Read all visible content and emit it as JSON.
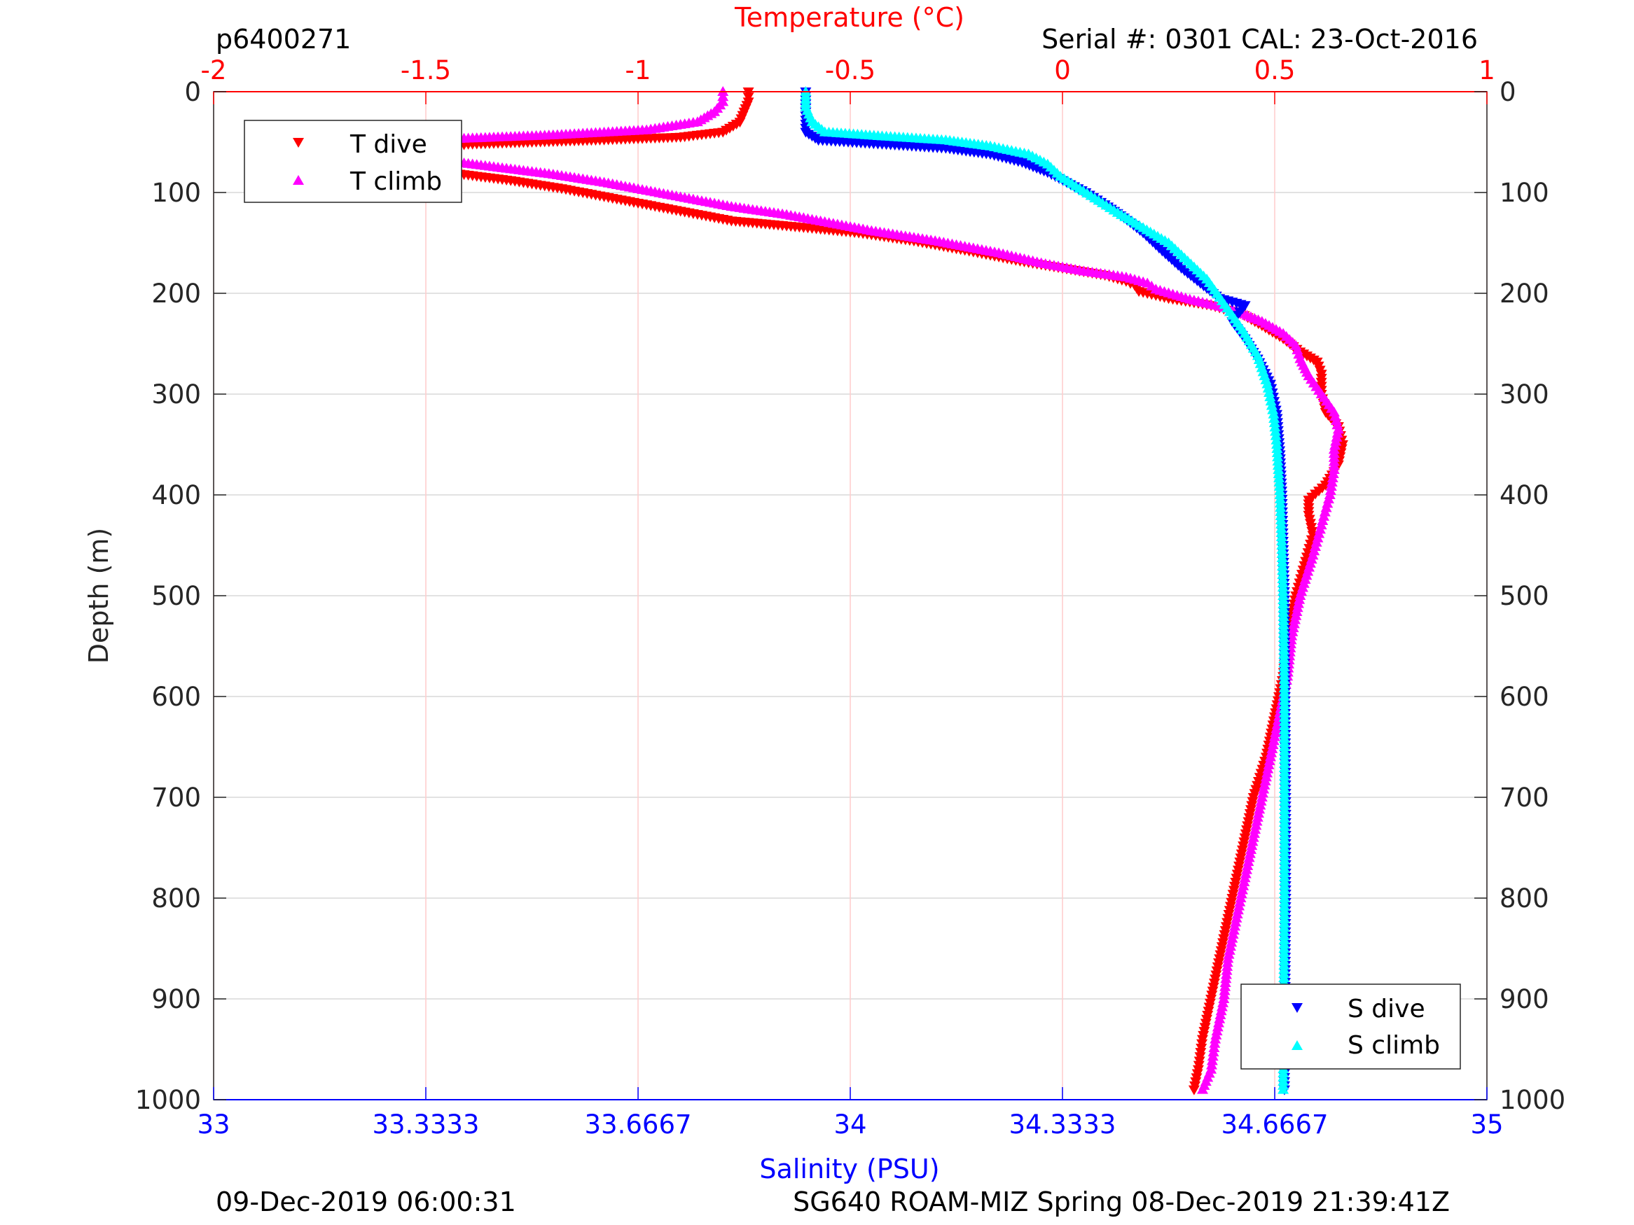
{
  "header": {
    "dive_id": "p6400271",
    "serial": "Serial #: 0301  CAL: 23-Oct-2016"
  },
  "footer": {
    "left": "09-Dec-2019 06:00:31",
    "right": "SG640 ROAM-MIZ Spring 08-Dec-2019 21:39:41Z"
  },
  "colors": {
    "temperature_axis": "#ff0000",
    "salinity_axis": "#0000ff",
    "t_dive": "#ff0000",
    "t_climb": "#ff00ff",
    "s_dive": "#0000ff",
    "s_climb": "#00ffff"
  },
  "chart_data": {
    "type": "scatter",
    "grid": true,
    "y_axis": {
      "label": "Depth (m)",
      "range": [
        0,
        1000
      ],
      "reversed": true,
      "ticks": [
        "0",
        "100",
        "200",
        "300",
        "400",
        "500",
        "600",
        "700",
        "800",
        "900",
        "1000"
      ]
    },
    "x_top_axis": {
      "label": "Temperature (°C)",
      "range": [
        -2,
        1
      ],
      "ticks": [
        -2,
        -1.5,
        -1,
        -0.5,
        0,
        0.5,
        1
      ],
      "tick_labels": [
        "-2",
        "-1.5",
        "-1",
        "-0.5",
        "0",
        "0.5",
        "1"
      ]
    },
    "x_bottom_axis": {
      "label": "Salinity (PSU)",
      "range": [
        33,
        35
      ],
      "ticks": [
        33,
        33.3333,
        33.6667,
        34,
        34.3333,
        34.6667,
        35
      ],
      "tick_labels": [
        "33",
        "33.3333",
        "33.6667",
        "34",
        "34.3333",
        "34.6667",
        "35"
      ]
    },
    "legend_temperature": {
      "placement": "top-left",
      "entries": [
        {
          "series": "T dive",
          "marker": "triangle-down"
        },
        {
          "series": "T climb",
          "marker": "triangle-up"
        }
      ]
    },
    "legend_salinity": {
      "placement": "bottom-right",
      "entries": [
        {
          "series": "S dive",
          "marker": "triangle-down"
        },
        {
          "series": "S climb",
          "marker": "triangle-up"
        }
      ]
    },
    "series": [
      {
        "name": "T dive",
        "axis": "temperature",
        "marker": "triangle-down",
        "points": [
          [
            -0.74,
            0
          ],
          [
            -0.74,
            10
          ],
          [
            -0.75,
            20
          ],
          [
            -0.76,
            30
          ],
          [
            -0.8,
            40
          ],
          [
            -0.9,
            45
          ],
          [
            -1.1,
            48
          ],
          [
            -1.4,
            52
          ],
          [
            -1.52,
            58
          ],
          [
            -1.57,
            65
          ],
          [
            -1.52,
            72
          ],
          [
            -1.45,
            80
          ],
          [
            -1.3,
            88
          ],
          [
            -1.18,
            96
          ],
          [
            -1.08,
            104
          ],
          [
            -0.98,
            112
          ],
          [
            -0.88,
            120
          ],
          [
            -0.78,
            128
          ],
          [
            -0.6,
            135
          ],
          [
            -0.48,
            140
          ],
          [
            -0.35,
            148
          ],
          [
            -0.22,
            158
          ],
          [
            -0.1,
            168
          ],
          [
            0.0,
            175
          ],
          [
            0.1,
            182
          ],
          [
            0.15,
            188
          ],
          [
            0.17,
            192
          ],
          [
            0.18,
            198
          ],
          [
            0.25,
            205
          ],
          [
            0.35,
            212
          ],
          [
            0.42,
            220
          ],
          [
            0.47,
            232
          ],
          [
            0.52,
            245
          ],
          [
            0.56,
            258
          ],
          [
            0.6,
            268
          ],
          [
            0.61,
            280
          ],
          [
            0.61,
            300
          ],
          [
            0.62,
            318
          ],
          [
            0.65,
            332
          ],
          [
            0.66,
            350
          ],
          [
            0.65,
            370
          ],
          [
            0.62,
            390
          ],
          [
            0.58,
            405
          ],
          [
            0.58,
            420
          ],
          [
            0.59,
            440
          ],
          [
            0.57,
            470
          ],
          [
            0.55,
            500
          ],
          [
            0.53,
            540
          ],
          [
            0.52,
            580
          ],
          [
            0.5,
            620
          ],
          [
            0.48,
            660
          ],
          [
            0.45,
            700
          ],
          [
            0.43,
            740
          ],
          [
            0.41,
            780
          ],
          [
            0.39,
            820
          ],
          [
            0.37,
            860
          ],
          [
            0.35,
            900
          ],
          [
            0.33,
            940
          ],
          [
            0.32,
            970
          ],
          [
            0.31,
            990
          ]
        ]
      },
      {
        "name": "T climb",
        "axis": "temperature",
        "marker": "triangle-up",
        "points": [
          [
            -0.8,
            0
          ],
          [
            -0.8,
            10
          ],
          [
            -0.82,
            20
          ],
          [
            -0.86,
            30
          ],
          [
            -0.98,
            38
          ],
          [
            -1.2,
            43
          ],
          [
            -1.45,
            47
          ],
          [
            -1.65,
            52
          ],
          [
            -1.63,
            58
          ],
          [
            -1.5,
            66
          ],
          [
            -1.35,
            74
          ],
          [
            -1.2,
            82
          ],
          [
            -1.08,
            90
          ],
          [
            -0.98,
            98
          ],
          [
            -0.88,
            106
          ],
          [
            -0.78,
            114
          ],
          [
            -0.65,
            122
          ],
          [
            -0.55,
            130
          ],
          [
            -0.45,
            138
          ],
          [
            -0.3,
            148
          ],
          [
            -0.15,
            160
          ],
          [
            -0.05,
            170
          ],
          [
            0.05,
            178
          ],
          [
            0.15,
            184
          ],
          [
            0.2,
            190
          ],
          [
            0.22,
            196
          ],
          [
            0.3,
            206
          ],
          [
            0.4,
            216
          ],
          [
            0.47,
            228
          ],
          [
            0.52,
            240
          ],
          [
            0.55,
            252
          ],
          [
            0.56,
            265
          ],
          [
            0.58,
            282
          ],
          [
            0.61,
            300
          ],
          [
            0.64,
            318
          ],
          [
            0.65,
            335
          ],
          [
            0.64,
            355
          ],
          [
            0.64,
            375
          ],
          [
            0.63,
            400
          ],
          [
            0.61,
            430
          ],
          [
            0.59,
            460
          ],
          [
            0.56,
            500
          ],
          [
            0.54,
            540
          ],
          [
            0.53,
            580
          ],
          [
            0.51,
            620
          ],
          [
            0.49,
            660
          ],
          [
            0.47,
            700
          ],
          [
            0.45,
            740
          ],
          [
            0.43,
            780
          ],
          [
            0.41,
            820
          ],
          [
            0.39,
            860
          ],
          [
            0.38,
            900
          ],
          [
            0.36,
            940
          ],
          [
            0.35,
            970
          ],
          [
            0.33,
            990
          ]
        ]
      },
      {
        "name": "S dive",
        "axis": "salinity",
        "marker": "triangle-down",
        "points": [
          [
            33.93,
            0
          ],
          [
            33.93,
            20
          ],
          [
            33.93,
            40
          ],
          [
            33.95,
            48
          ],
          [
            34.05,
            52
          ],
          [
            34.15,
            56
          ],
          [
            34.22,
            62
          ],
          [
            34.27,
            70
          ],
          [
            34.31,
            80
          ],
          [
            34.34,
            90
          ],
          [
            34.37,
            100
          ],
          [
            34.4,
            112
          ],
          [
            34.43,
            125
          ],
          [
            34.46,
            140
          ],
          [
            34.49,
            158
          ],
          [
            34.52,
            175
          ],
          [
            34.55,
            190
          ],
          [
            34.58,
            205
          ],
          [
            34.62,
            212
          ],
          [
            34.6,
            228
          ],
          [
            34.62,
            245
          ],
          [
            34.64,
            265
          ],
          [
            34.66,
            290
          ],
          [
            34.67,
            320
          ],
          [
            34.675,
            360
          ],
          [
            34.678,
            400
          ],
          [
            34.68,
            450
          ],
          [
            34.682,
            500
          ],
          [
            34.683,
            600
          ],
          [
            34.684,
            700
          ],
          [
            34.684,
            800
          ],
          [
            34.683,
            900
          ],
          [
            34.682,
            990
          ]
        ]
      },
      {
        "name": "S climb",
        "axis": "salinity",
        "marker": "triangle-up",
        "points": [
          [
            33.93,
            0
          ],
          [
            33.93,
            15
          ],
          [
            33.94,
            30
          ],
          [
            33.96,
            40
          ],
          [
            34.05,
            44
          ],
          [
            34.15,
            48
          ],
          [
            34.22,
            54
          ],
          [
            34.28,
            62
          ],
          [
            34.31,
            72
          ],
          [
            34.33,
            84
          ],
          [
            34.36,
            96
          ],
          [
            34.39,
            108
          ],
          [
            34.42,
            120
          ],
          [
            34.46,
            135
          ],
          [
            34.5,
            150
          ],
          [
            34.53,
            168
          ],
          [
            34.56,
            186
          ],
          [
            34.58,
            204
          ],
          [
            34.6,
            222
          ],
          [
            34.62,
            240
          ],
          [
            34.64,
            262
          ],
          [
            34.655,
            290
          ],
          [
            34.665,
            320
          ],
          [
            34.67,
            350
          ],
          [
            34.675,
            400
          ],
          [
            34.678,
            450
          ],
          [
            34.68,
            500
          ],
          [
            34.682,
            600
          ],
          [
            34.682,
            700
          ],
          [
            34.682,
            800
          ],
          [
            34.681,
            900
          ],
          [
            34.68,
            990
          ]
        ]
      }
    ]
  }
}
